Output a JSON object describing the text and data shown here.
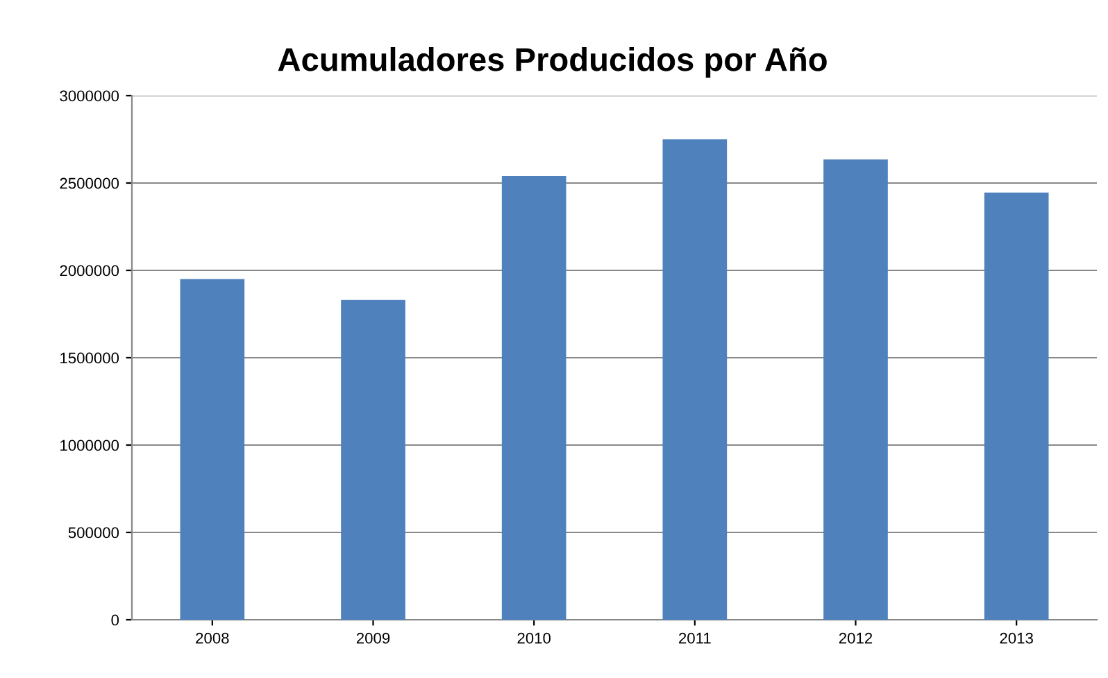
{
  "chart_data": {
    "type": "bar",
    "title": "Acumuladores Producidos por Año",
    "categories": [
      "2008",
      "2009",
      "2010",
      "2011",
      "2012",
      "2013"
    ],
    "values": [
      1950000,
      1830000,
      2540000,
      2750000,
      2635000,
      2445000
    ],
    "color": "#4f81bd",
    "ylim": [
      0,
      3000000
    ],
    "yticks": [
      0,
      500000,
      1000000,
      1500000,
      2000000,
      2500000,
      3000000
    ],
    "grid": "y",
    "legend": false
  }
}
